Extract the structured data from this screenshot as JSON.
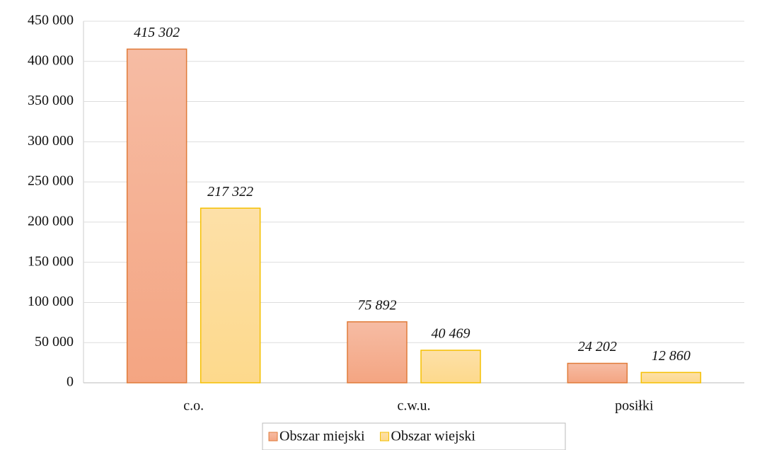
{
  "chart_data": {
    "type": "bar",
    "categories": [
      "c.o.",
      "c.w.u.",
      "posiłki"
    ],
    "series": [
      {
        "name": "Obszar miejski",
        "color": "#f4a582",
        "values": [
          415302,
          75892,
          24202
        ],
        "value_labels": [
          "415 302",
          "75 892",
          "24 202"
        ]
      },
      {
        "name": "Obszar wiejski",
        "color": "#fdd98c",
        "values": [
          217322,
          40469,
          12860
        ],
        "value_labels": [
          "217 322",
          "40 469",
          "12 860"
        ]
      }
    ],
    "ylim": [
      0,
      450000
    ],
    "yticks": [
      0,
      {
        "value": 50000,
        "label": "50 000"
      },
      {
        "value": 100000,
        "label": "100 000"
      },
      {
        "value": 150000,
        "label": "150 000"
      },
      {
        "value": 200000,
        "label": "200 000"
      },
      {
        "value": 250000,
        "label": "250 000"
      },
      {
        "value": 300000,
        "label": "300 000"
      },
      {
        "value": 350000,
        "label": "350 000"
      },
      {
        "value": 400000,
        "label": "400 000"
      },
      {
        "value": 450000,
        "label": "450 000"
      }
    ],
    "grid": true,
    "legend": "bottom"
  }
}
